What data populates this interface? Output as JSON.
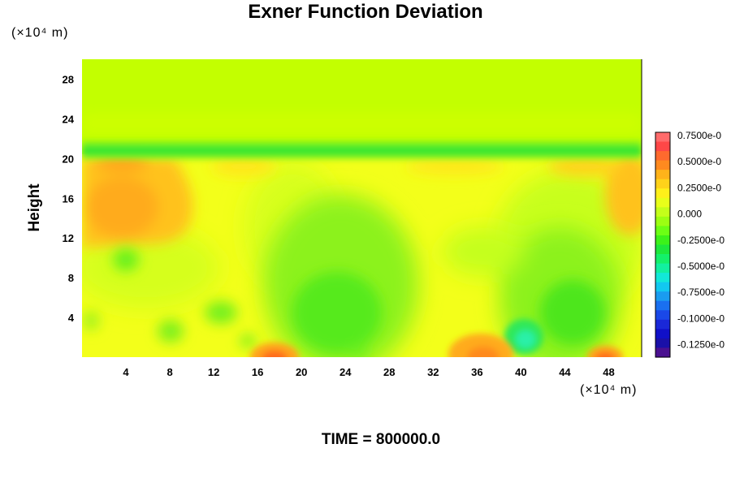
{
  "chart_data": {
    "type": "heatmap",
    "title": "Exner Function Deviation",
    "ylabel": "Height",
    "x_unit": "(×10⁴ m)",
    "y_unit": "(×10⁴ m)",
    "xlim": [
      0,
      51
    ],
    "ylim": [
      0,
      30
    ],
    "x_ticks": [
      4,
      8,
      12,
      16,
      20,
      24,
      28,
      32,
      36,
      40,
      44,
      48
    ],
    "y_ticks": [
      4,
      8,
      12,
      16,
      20,
      24,
      28
    ],
    "colorbar_labels": [
      "0.7500e-0",
      "0.5000e-0",
      "0.2500e-0",
      "0.000",
      "-0.2500e-0",
      "-0.5000e-0",
      "-0.7500e-0",
      "-0.1000e-0",
      "-0.1250e-0"
    ],
    "colorbar_colors": [
      "#ff6b6b",
      "#ff4747",
      "#ff6a2e",
      "#ff8a1f",
      "#ffb31a",
      "#ffd21a",
      "#fff01a",
      "#e8ff1a",
      "#c4ff1a",
      "#9cff12",
      "#6cff14",
      "#3cf21a",
      "#1de83c",
      "#14f06a",
      "#12f0a0",
      "#12e8d8",
      "#12c8f0",
      "#1a9cf0",
      "#1a70f0",
      "#1a48e8",
      "#1a28d8",
      "#1010c8",
      "#1a10a8",
      "#4a1090"
    ],
    "background_color": "#c3ff00",
    "features": [
      {
        "name": "green band",
        "x": [
          0,
          51
        ],
        "y": 20.8,
        "value": -0.35
      },
      {
        "name": "orange region",
        "x": [
          0,
          13
        ],
        "y": [
          12,
          20
        ],
        "value": 0.3
      },
      {
        "name": "yellow layer",
        "x": [
          0,
          51
        ],
        "y": [
          0,
          20
        ],
        "value": 0.12
      },
      {
        "name": "green dome",
        "x": 23,
        "y": 4,
        "value": -0.3
      },
      {
        "name": "green dome",
        "x": 45,
        "y": 4,
        "value": -0.3
      },
      {
        "name": "cyan spot",
        "x": 40.5,
        "y": 1.5,
        "value": -0.55
      },
      {
        "name": "orange-red spot",
        "x": 17.5,
        "y": 0.3,
        "value": 0.55
      },
      {
        "name": "orange spot",
        "x": 37,
        "y": 0.5,
        "value": 0.35
      },
      {
        "name": "orange-red spot",
        "x": 48,
        "y": 0.3,
        "value": 0.55
      }
    ]
  },
  "footer": {
    "time_label": "TIME = 800000.0"
  }
}
